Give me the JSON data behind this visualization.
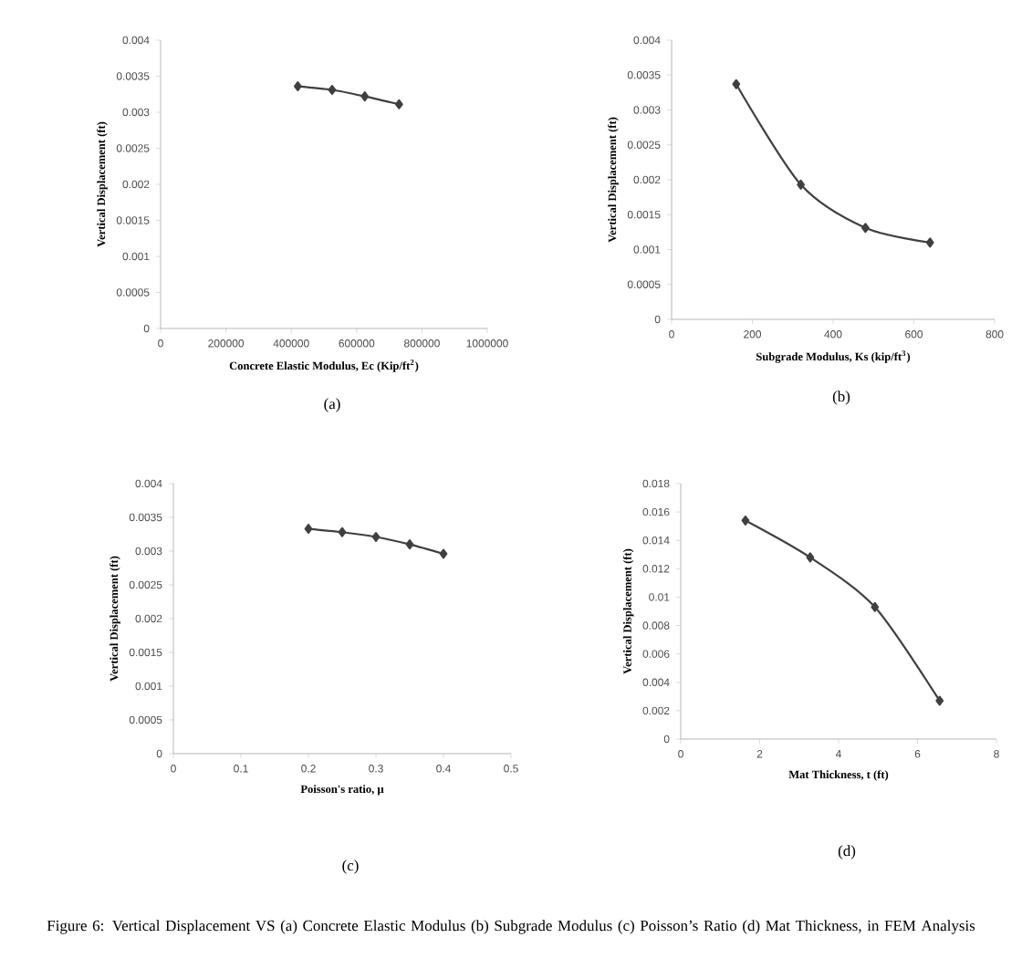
{
  "chart_data": [
    {
      "type": "line",
      "xlabel": "Concrete Elastic Modulus, Ec (Kip/ft$^{2}$)",
      "ylabel": "Vertical Displacement (ft)",
      "annotations": [
        "(a)"
      ],
      "marker": "diamond",
      "line_style": "solid",
      "grid": false,
      "x": [
        420000,
        525000,
        625000,
        730000
      ],
      "series": [
        {
          "color": "#404040",
          "values": [
            0.00336,
            0.00331,
            0.00322,
            0.00311
          ]
        }
      ],
      "xlim": [
        0,
        1000000
      ],
      "xticks": [
        0,
        200000,
        400000,
        600000,
        800000,
        1000000
      ],
      "ylim": [
        0,
        0.004
      ],
      "yticks": [
        0,
        0.0005,
        0.001,
        0.0015,
        0.002,
        0.0025,
        0.003,
        0.0035,
        0.004
      ]
    },
    {
      "type": "line",
      "xlabel": "Subgrade Modulus, Ks (kip/ft$^{3}$)",
      "ylabel": "Vertical  Displacement (ft)",
      "annotations": [
        "(b)"
      ],
      "marker": "diamond",
      "line_style": "solid",
      "grid": false,
      "x": [
        160,
        320,
        480,
        640
      ],
      "series": [
        {
          "color": "#404040",
          "values": [
            0.00337,
            0.00193,
            0.00131,
            0.0011
          ]
        }
      ],
      "xlim": [
        0,
        800
      ],
      "xticks": [
        0,
        200,
        400,
        600,
        800
      ],
      "ylim": [
        0,
        0.004
      ],
      "yticks": [
        0,
        0.0005,
        0.001,
        0.0015,
        0.002,
        0.0025,
        0.003,
        0.0035,
        0.004
      ]
    },
    {
      "type": "line",
      "xlabel": "Poisson's ratio, µ",
      "ylabel": "Vertical Displacement (ft)",
      "annotations": [
        "(c)"
      ],
      "marker": "diamond",
      "line_style": "solid",
      "grid": false,
      "x": [
        0.2,
        0.25,
        0.3,
        0.35,
        0.4
      ],
      "series": [
        {
          "color": "#404040",
          "values": [
            0.00333,
            0.00328,
            0.00321,
            0.0031,
            0.00296
          ]
        }
      ],
      "xlim": [
        0,
        0.5
      ],
      "xticks": [
        0,
        0.1,
        0.2,
        0.3,
        0.4,
        0.5
      ],
      "ylim": [
        0,
        0.004
      ],
      "yticks": [
        0,
        0.0005,
        0.001,
        0.0015,
        0.002,
        0.0025,
        0.003,
        0.0035,
        0.004
      ]
    },
    {
      "type": "line",
      "xlabel": "Mat Thickness, t (ft)",
      "ylabel": "Vertical Displacement (ft)",
      "annotations": [
        "(d)",
        "Figure 6: Vertical Displacement VS (a) Concrete Elastic Modulus (b) Subgrade Modulus (c) Poisson’s Ratio (d) Mat Thickness, in FEM Analysis"
      ],
      "marker": "diamond",
      "line_style": "solid",
      "grid": false,
      "x": [
        1.64,
        3.28,
        4.92,
        6.56
      ],
      "series": [
        {
          "color": "#404040",
          "values": [
            0.0154,
            0.0128,
            0.0093,
            0.0027
          ]
        }
      ],
      "xlim": [
        0,
        8
      ],
      "xticks": [
        0,
        2,
        4,
        6,
        8
      ],
      "ylim": [
        0,
        0.018
      ],
      "yticks": [
        0,
        0.002,
        0.004,
        0.006,
        0.008,
        0.01,
        0.012,
        0.014,
        0.016,
        0.018
      ]
    }
  ]
}
